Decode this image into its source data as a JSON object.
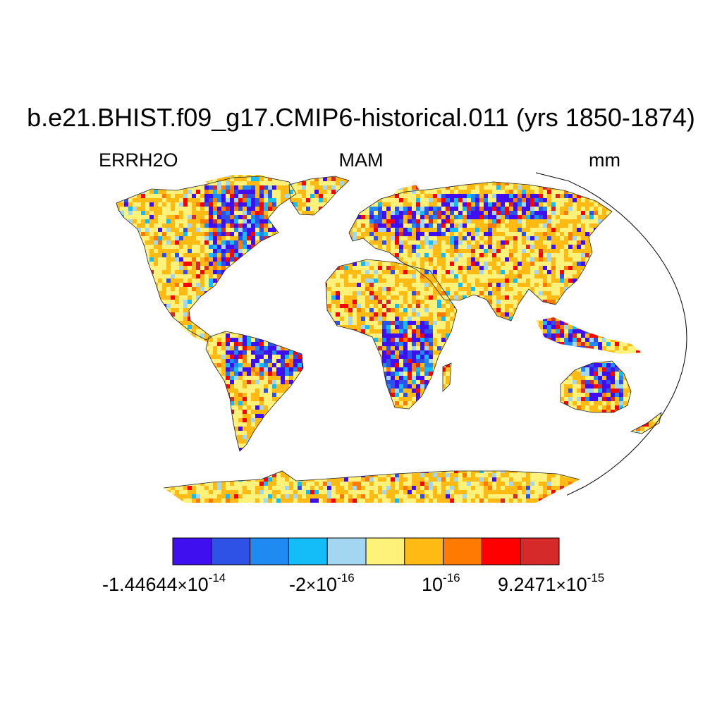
{
  "header": {
    "title": "b.e21.BHIST.f09_g17.CMIP6-historical.011 (yrs 1850-1874)",
    "left_label": "ERRH2O",
    "center_label": "MAM",
    "right_label": "mm"
  },
  "map": {
    "projection": "Robinson",
    "colors": [
      "#3f0ff0",
      "#2e52e6",
      "#1f8bf2",
      "#14bdf7",
      "#a3d6f0",
      "#fff27a",
      "#ffbb14",
      "#ff7a00",
      "#ff0000",
      "#d62a2a"
    ],
    "land_dominant_colors": [
      "#fff27a",
      "#ffbb14"
    ]
  },
  "colorbar": {
    "colors": [
      "#3f0ff0",
      "#2e52e6",
      "#1f8bf2",
      "#14bdf7",
      "#a3d6f0",
      "#fff27a",
      "#ffbb14",
      "#ff7a00",
      "#ff0000",
      "#d62a2a"
    ],
    "labels": [
      {
        "mantissa": "-1.44644",
        "times": "×",
        "base": "10",
        "exp": "-14"
      },
      {
        "mantissa": "-2",
        "times": "×",
        "base": "10",
        "exp": "-16"
      },
      {
        "mantissa": "",
        "times": "",
        "base": "10",
        "exp": "-16"
      },
      {
        "mantissa": "9.2471",
        "times": "×",
        "base": "10",
        "exp": "-15"
      }
    ]
  }
}
